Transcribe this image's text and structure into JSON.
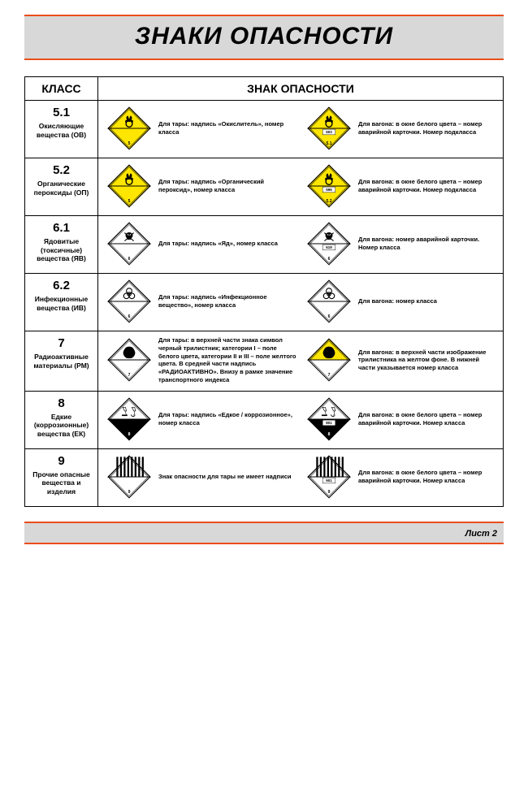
{
  "title": "ЗНАКИ ОПАСНОСТИ",
  "header_class": "КЛАСС",
  "header_sign": "ЗНАК ОПАСНОСТИ",
  "footer": "Лист 2",
  "colors": {
    "orange_rule": "#e94e1b",
    "grey_band": "#d8d8d8",
    "yellow": "#ffe600",
    "white": "#ffffff",
    "black": "#000000"
  },
  "rows": [
    {
      "num": "5.1",
      "name": "Окисляющие вещества (ОВ)",
      "left": {
        "icon": "oxidizer",
        "bg": "#ffe600",
        "upper": "#ffe600",
        "lower": "#ffe600",
        "sub": "5",
        "code": "",
        "text": "Для тары: надпись «Окислитель», номер класса"
      },
      "right": {
        "icon": "oxidizer",
        "bg": "#ffe600",
        "upper": "#ffe600",
        "lower": "#ffe600",
        "sub": "5.1",
        "code": "503",
        "text": "Для вагона: в окне белого цвета – номер аварийной карточки. Номер подкласса"
      }
    },
    {
      "num": "5.2",
      "name": "Органические пероксиды (ОП)",
      "left": {
        "icon": "oxidizer",
        "bg": "#ffe600",
        "upper": "#ffe600",
        "lower": "#ffe600",
        "sub": "5",
        "code": "",
        "text": "Для тары: надпись «Органический пероксид», номер класса"
      },
      "right": {
        "icon": "oxidizer",
        "bg": "#ffe600",
        "upper": "#ffe600",
        "lower": "#ffe600",
        "sub": "5.2",
        "code": "596",
        "text": "Для вагона: в окне белого цвета – номер аварийной карточки. Номер подкласса"
      }
    },
    {
      "num": "6.1",
      "name": "Ядовитые (токсичные) вещества (ЯВ)",
      "left": {
        "icon": "skull",
        "bg": "#ffffff",
        "upper": "#ffffff",
        "lower": "#ffffff",
        "sub": "6",
        "code": "",
        "text": "Для тары: надпись «Яд», номер класса"
      },
      "right": {
        "icon": "skull",
        "bg": "#ffffff",
        "upper": "#ffffff",
        "lower": "#ffffff",
        "sub": "6",
        "code": "619",
        "text": "Для вагона: номер аварийной карточки. Номер класса"
      }
    },
    {
      "num": "6.2",
      "name": "Инфекционные вещества (ИВ)",
      "left": {
        "icon": "biohazard",
        "bg": "#ffffff",
        "upper": "#ffffff",
        "lower": "#ffffff",
        "sub": "6",
        "code": "",
        "text": "Для тары: надпись «Инфекционное вещество», номер класса"
      },
      "right": {
        "icon": "biohazard",
        "bg": "#ffffff",
        "upper": "#ffffff",
        "lower": "#ffffff",
        "sub": "6",
        "code": "",
        "text": "Для вагона: номер класса"
      }
    },
    {
      "num": "7",
      "name": "Радиоактивные материалы (РМ)",
      "left": {
        "icon": "radiation",
        "bg": "#ffffff",
        "upper": "#ffffff",
        "lower": "#ffffff",
        "sub": "7",
        "code": "",
        "text": "Для тары: в верхней части знака символ черный трилистник; категории I – поле белого цвета, категории II и III – поле желтого цвета. В средней части надпись «РАДИОАКТИВНО». Внизу в рамке значение транспортного индекса"
      },
      "right": {
        "icon": "radiation",
        "bg": "#ffffff",
        "upper": "#ffe600",
        "lower": "#ffffff",
        "sub": "7",
        "code": "",
        "text": "Для вагона: в верхней части изображение трилистника на желтом фоне. В нижней части указывается номер класса"
      }
    },
    {
      "num": "8",
      "name": "Едкие (коррозионные) вещества (ЕК)",
      "left": {
        "icon": "corrosive",
        "bg": "#ffffff",
        "upper": "#ffffff",
        "lower": "#000000",
        "sub": "8",
        "code": "",
        "text": "Для тары: надпись «Едкое / коррозионное», номер класса"
      },
      "right": {
        "icon": "corrosive",
        "bg": "#ffffff",
        "upper": "#ffffff",
        "lower": "#000000",
        "sub": "8",
        "code": "801",
        "text": "Для вагона: в окне белого цвета – номер аварийной карточки. Номер класса"
      }
    },
    {
      "num": "9",
      "name": "Прочие опасные вещества и изделия",
      "left": {
        "icon": "stripes",
        "bg": "#ffffff",
        "upper": "#ffffff",
        "lower": "#ffffff",
        "sub": "9",
        "code": "",
        "text": "Знак опасности для тары не имеет надписи"
      },
      "right": {
        "icon": "stripes",
        "bg": "#ffffff",
        "upper": "#ffffff",
        "lower": "#ffffff",
        "sub": "9",
        "code": "901",
        "text": "Для вагона: в окне белого цвета – номер аварийной карточки. Номер класса"
      }
    }
  ]
}
